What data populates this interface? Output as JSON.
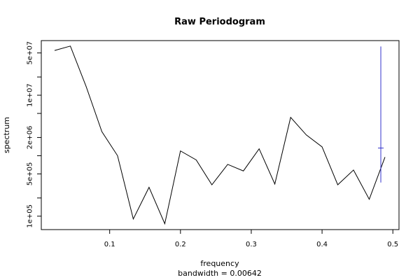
{
  "chart_data": {
    "type": "line",
    "title": "Raw Periodogram",
    "xlabel": "frequency",
    "ylabel": "spectrum",
    "footnote": "bandwidth = 0.00642",
    "y_scale": "log",
    "x_ticks": [
      {
        "value": 0.1,
        "label": "0.1"
      },
      {
        "value": 0.2,
        "label": "0.2"
      },
      {
        "value": 0.3,
        "label": "0.3"
      },
      {
        "value": 0.4,
        "label": "0.4"
      },
      {
        "value": 0.5,
        "label": "0.5"
      }
    ],
    "y_ticks": [
      {
        "value": 100000,
        "label": "1e+05",
        "labeled": true
      },
      {
        "value": 200000,
        "label": "",
        "labeled": false
      },
      {
        "value": 500000,
        "label": "5e+05",
        "labeled": true
      },
      {
        "value": 1000000,
        "label": "",
        "labeled": false
      },
      {
        "value": 2000000,
        "label": "2e+06",
        "labeled": true
      },
      {
        "value": 5000000,
        "label": "",
        "labeled": false
      },
      {
        "value": 10000000,
        "label": "1e+07",
        "labeled": true
      },
      {
        "value": 20000000,
        "label": "",
        "labeled": false
      },
      {
        "value": 50000000,
        "label": "5e+07",
        "labeled": true
      }
    ],
    "xlim": [
      0.0222,
      0.4889
    ],
    "ylim": [
      60000,
      80000000
    ],
    "series": [
      {
        "color": "#000000",
        "x": [
          0.0222,
          0.0444,
          0.0667,
          0.0889,
          0.1111,
          0.1333,
          0.1556,
          0.1778,
          0.2,
          0.2222,
          0.2444,
          0.2667,
          0.2889,
          0.3111,
          0.3333,
          0.3556,
          0.3778,
          0.4,
          0.4222,
          0.4444,
          0.4667,
          0.4889
        ],
        "y": [
          55000000,
          65000000,
          14000000,
          2500000,
          1000000,
          90000,
          300000,
          75000,
          1200000,
          850000,
          330000,
          720000,
          560000,
          1300000,
          340000,
          4300000,
          2200000,
          1400000,
          330000,
          580000,
          190000,
          950000
        ]
      }
    ],
    "confidence_interval": {
      "color": "#3333cc",
      "x": 0.483,
      "center": 1340000,
      "lower": 360000,
      "upper": 64000000
    }
  }
}
